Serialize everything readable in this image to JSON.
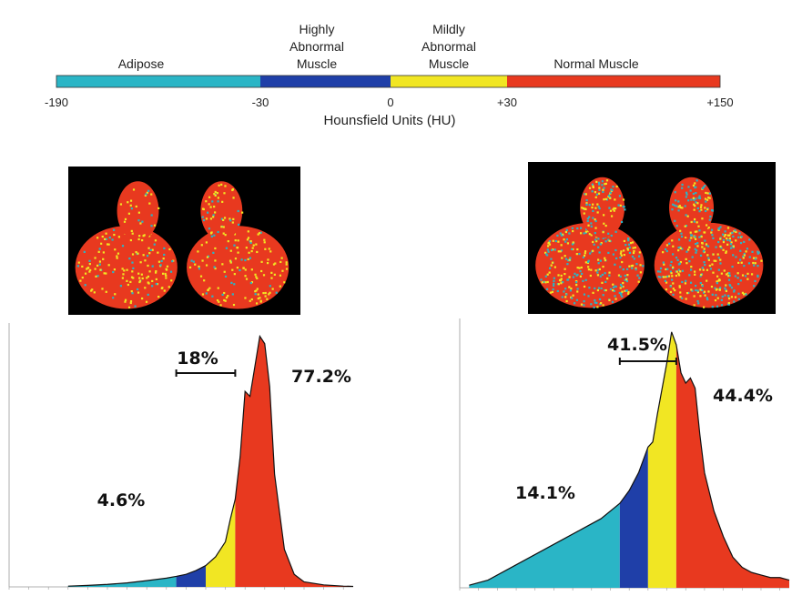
{
  "colorbar": {
    "categories": [
      {
        "label": "Adipose",
        "color": "#2ab5c6",
        "from": -190,
        "to": -30
      },
      {
        "label": "Highly\nAbnormal\nMuscle",
        "color": "#1f3fa8",
        "from": -30,
        "to": 0
      },
      {
        "label": "Mildly\nAbnormal\nMuscle",
        "color": "#f1e623",
        "from": 0,
        "to": 30
      },
      {
        "label": "Normal Muscle",
        "color": "#e8391f",
        "from": 30,
        "to": 150
      }
    ],
    "ticks": [
      "-190",
      "-30",
      "0",
      "+30",
      "+150"
    ],
    "tick_values": [
      -190,
      -30,
      0,
      30,
      150
    ],
    "axis_label": "Hounsfield Units (HU)"
  },
  "chart_data": [
    {
      "type": "area",
      "xlim": [
        -200,
        150
      ],
      "x": [
        -140,
        -120,
        -100,
        -80,
        -60,
        -40,
        -30,
        -20,
        -10,
        0,
        10,
        20,
        25,
        30,
        35,
        40,
        45,
        50,
        55,
        60,
        65,
        70,
        80,
        90,
        100,
        120,
        140,
        150
      ],
      "y": [
        0.3,
        0.6,
        1.0,
        1.6,
        2.5,
        3.5,
        4.2,
        5.0,
        6.5,
        8.5,
        12,
        18,
        27,
        35,
        52,
        78,
        76,
        88,
        100,
        97,
        80,
        45,
        15,
        5,
        2,
        0.8,
        0.3,
        0.2
      ],
      "regions": [
        {
          "label": "Adipose",
          "color": "#2ab5c6",
          "from": -140,
          "to": -30
        },
        {
          "label": "Highly Abnormal Muscle",
          "color": "#1f3fa8",
          "from": -30,
          "to": 0
        },
        {
          "label": "Mildly Abnormal Muscle",
          "color": "#f1e623",
          "from": 0,
          "to": 30
        },
        {
          "label": "Normal Muscle",
          "color": "#e8391f",
          "from": 30,
          "to": 150
        }
      ],
      "percentages": {
        "adipose": "4.6%",
        "abnormal": "18%",
        "normal": "77.2%"
      }
    },
    {
      "type": "area",
      "xlim": [
        -200,
        150
      ],
      "x": [
        -190,
        -170,
        -150,
        -130,
        -110,
        -90,
        -70,
        -50,
        -30,
        -20,
        -10,
        0,
        5,
        10,
        15,
        20,
        25,
        30,
        35,
        40,
        45,
        50,
        55,
        60,
        70,
        80,
        90,
        100,
        110,
        120,
        130,
        140,
        150
      ],
      "y": [
        1,
        3,
        7,
        11,
        15,
        19,
        23,
        27,
        33,
        38,
        45,
        55,
        57,
        68,
        78,
        88,
        100,
        95,
        84,
        80,
        82,
        78,
        60,
        45,
        30,
        20,
        12,
        8,
        6,
        5,
        4,
        4,
        3
      ],
      "regions": [
        {
          "label": "Adipose",
          "color": "#2ab5c6",
          "from": -190,
          "to": -30
        },
        {
          "label": "Highly Abnormal Muscle",
          "color": "#1f3fa8",
          "from": -30,
          "to": 0
        },
        {
          "label": "Mildly Abnormal Muscle",
          "color": "#f1e623",
          "from": 0,
          "to": 30
        },
        {
          "label": "Normal Muscle",
          "color": "#e8391f",
          "from": 30,
          "to": 150
        }
      ],
      "percentages": {
        "adipose": "14.1%",
        "abnormal": "41.5%",
        "normal": "44.4%"
      }
    }
  ]
}
